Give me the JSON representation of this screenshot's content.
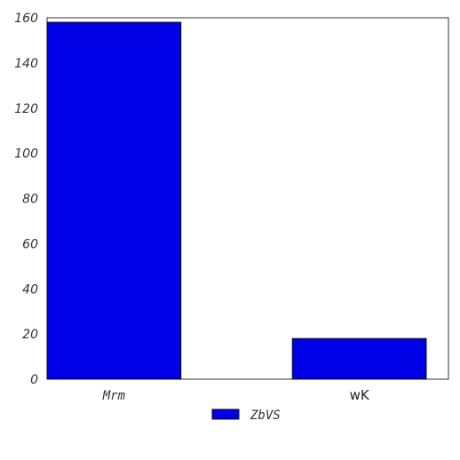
{
  "chart_data": {
    "type": "bar",
    "categories": [
      "Mrm",
      "wK"
    ],
    "series": [
      {
        "name": "ZbVS",
        "values": [
          158,
          18
        ],
        "color": "#0000e6"
      }
    ],
    "ylim": [
      0,
      160
    ],
    "yticks": [
      0,
      20,
      40,
      60,
      80,
      100,
      120,
      140,
      160
    ],
    "grid": false,
    "legend": "bottom-center"
  }
}
